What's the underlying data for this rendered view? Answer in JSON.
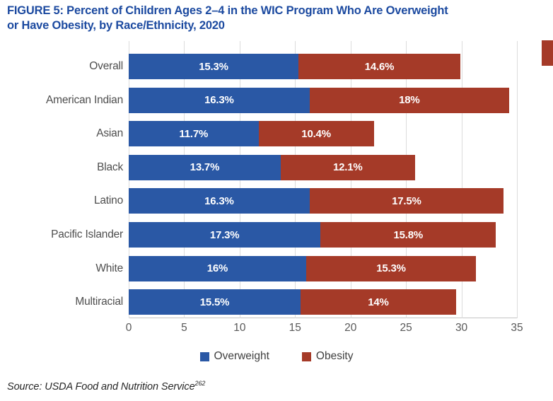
{
  "figure": {
    "title": "FIGURE 5: Percent of Children Ages 2–4 in the WIC Program Who Are Overweight or Have Obesity, by Race/Ethnicity, 2020",
    "title_lines": [
      "FIGURE 5: Percent of Children Ages 2–4 in the WIC Program Who Are Overweight",
      "or Have Obesity, by Race/Ethnicity, 2020"
    ],
    "source_text": "Source: USDA Food and Nutrition Service",
    "source_superscript": "262"
  },
  "colors": {
    "title_blue": "#1C4AA0",
    "overweight_blue": "#2A58A5",
    "obesity_red": "#A53A28",
    "category_label_gray": "#4E4E4E",
    "tick_gray": "#595959",
    "gridline_gray": "#DCDCDC"
  },
  "chart_data": {
    "type": "bar",
    "orientation": "horizontal",
    "stacked": true,
    "title": "FIGURE 5: Percent of Children Ages 2–4 in the WIC Program Who Are Overweight or Have Obesity, by Race/Ethnicity, 2020",
    "categories": [
      "Overall",
      "American Indian",
      "Asian",
      "Black",
      "Latino",
      "Pacific Islander",
      "White",
      "Multiracial"
    ],
    "series": [
      {
        "name": "Overweight",
        "color": "#2A58A5",
        "values": [
          15.3,
          16.3,
          11.7,
          13.7,
          16.3,
          17.3,
          16,
          15.5
        ],
        "labels": [
          "15.3%",
          "16.3%",
          "11.7%",
          "13.7%",
          "16.3%",
          "17.3%",
          "16%",
          "15.5%"
        ]
      },
      {
        "name": "Obesity",
        "color": "#A53A28",
        "values": [
          14.6,
          18,
          10.4,
          12.1,
          17.5,
          15.8,
          15.3,
          14
        ],
        "labels": [
          "14.6%",
          "18%",
          "10.4%",
          "12.1%",
          "17.5%",
          "15.8%",
          "15.3%",
          "14%"
        ]
      }
    ],
    "x_ticks": [
      "0",
      "5",
      "10",
      "15",
      "20",
      "25",
      "30",
      "35"
    ],
    "xlabel": "",
    "ylabel": "",
    "xlim": [
      0,
      35
    ],
    "grid": "vertical",
    "legend_position": "bottom-center"
  }
}
